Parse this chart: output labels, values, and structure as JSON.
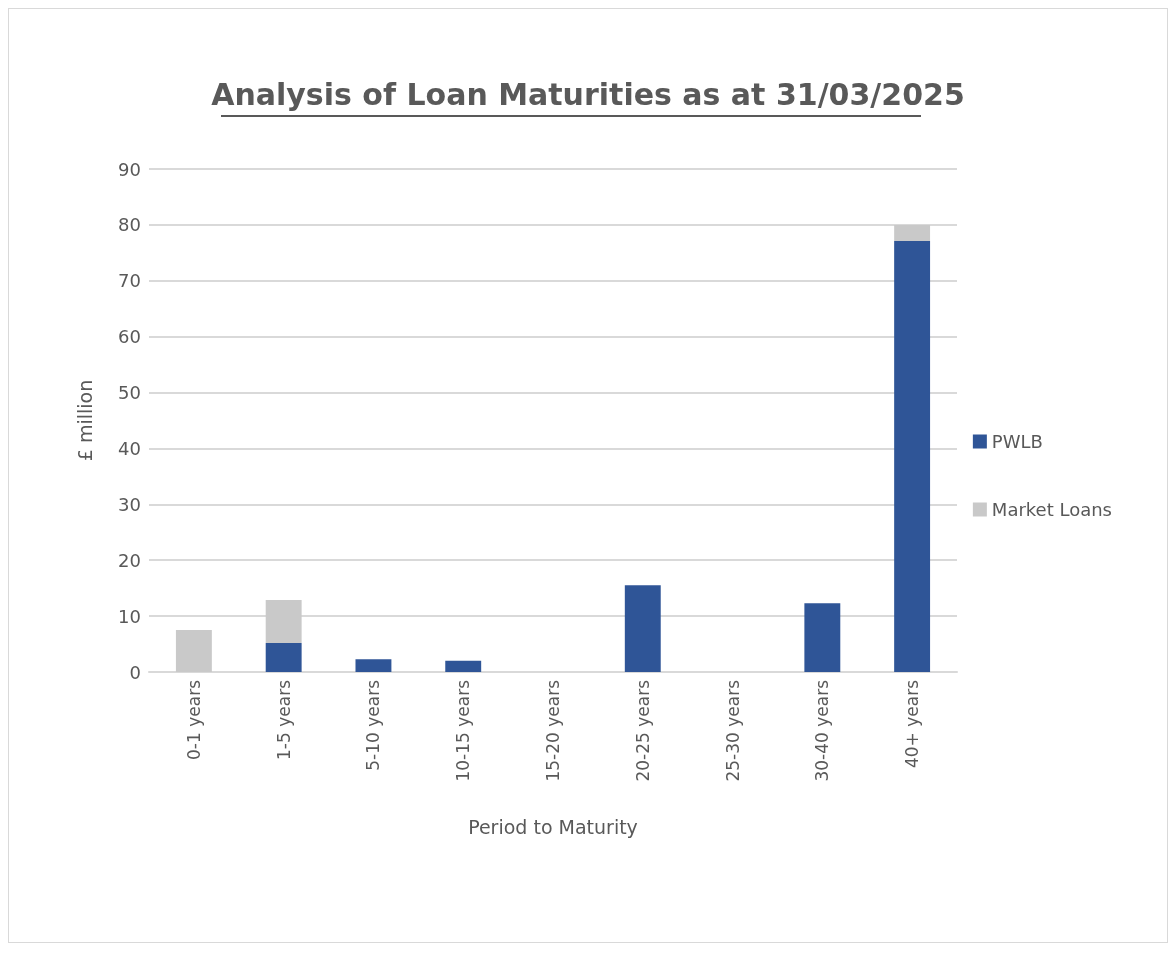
{
  "chart_data": {
    "type": "bar",
    "title": "Analysis of Loan Maturities as at 31/03/2025",
    "xlabel": "Period to Maturity",
    "ylabel": "£ million",
    "categories": [
      "0-1 years",
      "1-5 years",
      "5-10 years",
      "10-15 years",
      "15-20 years",
      "20-25 years",
      "25-30 years",
      "30-40 years",
      "40+ years"
    ],
    "series": [
      {
        "name": "PWLB",
        "color": "#2f5597",
        "values": [
          0,
          5.2,
          2.3,
          2.0,
          0,
          15.5,
          0,
          12.3,
          77.1
        ]
      },
      {
        "name": "Market Loans",
        "color": "#c9c9c9",
        "values": [
          7.5,
          7.7,
          0,
          0,
          0,
          0,
          0,
          0,
          2.9
        ]
      }
    ],
    "stacked": true,
    "ylim": [
      0,
      90
    ],
    "yticks": [
      0,
      10,
      20,
      30,
      40,
      50,
      60,
      70,
      80,
      90
    ],
    "grid": "y",
    "legend": "right"
  }
}
